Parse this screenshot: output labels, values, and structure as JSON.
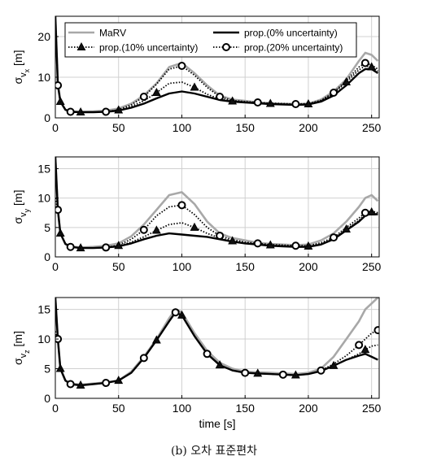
{
  "caption": "(b) 오차 표준편차",
  "colors": {
    "marv": "#a8a8a8",
    "prop": "#000000"
  },
  "chart_data": [
    {
      "type": "line",
      "ylabel_base": "σ",
      "ylabel_sub1": "v",
      "ylabel_sub2": "x",
      "ylabel_unit": " [m]",
      "xlabel": "",
      "xlim": [
        0,
        256
      ],
      "ylim": [
        0,
        25
      ],
      "xticks": [
        0,
        50,
        100,
        150,
        200,
        250
      ],
      "yticks": [
        0,
        10,
        20
      ],
      "grid": true,
      "legend": {
        "position": "top",
        "entries": [
          "MaRV",
          "prop.(0% uncertainty)",
          "prop.(10% uncertainty)",
          "prop.(20% uncertainty)"
        ]
      },
      "series": [
        {
          "name": "MaRV",
          "style": "gray",
          "x": [
            0,
            2,
            4,
            8,
            12,
            20,
            30,
            40,
            50,
            60,
            70,
            80,
            90,
            100,
            110,
            120,
            130,
            140,
            150,
            160,
            170,
            180,
            190,
            200,
            210,
            220,
            230,
            240,
            245,
            250,
            255
          ],
          "y": [
            25,
            9,
            4,
            2,
            1.6,
            1.5,
            1.6,
            1.8,
            2.3,
            3.5,
            5.5,
            8.5,
            12.5,
            13.5,
            11,
            8,
            5.5,
            4.5,
            4.2,
            3.8,
            3.6,
            3.5,
            3.4,
            3.5,
            4.5,
            6.5,
            9.5,
            14,
            16,
            15.5,
            14
          ]
        },
        {
          "name": "prop.(0% uncertainty)",
          "style": "solid",
          "x": [
            0,
            2,
            4,
            8,
            12,
            20,
            30,
            40,
            50,
            60,
            70,
            80,
            90,
            100,
            110,
            120,
            130,
            140,
            150,
            160,
            170,
            180,
            190,
            200,
            210,
            220,
            230,
            240,
            245,
            250,
            255
          ],
          "y": [
            25,
            8,
            4,
            2,
            1.5,
            1.4,
            1.4,
            1.5,
            1.8,
            2.5,
            3.5,
            4.8,
            6,
            6.5,
            6,
            5.2,
            4.4,
            4,
            3.8,
            3.6,
            3.4,
            3.3,
            3.2,
            3.3,
            4,
            5.5,
            8,
            11,
            12,
            12,
            11
          ]
        },
        {
          "name": "prop.(10% uncertainty)",
          "style": "dotted-triangle",
          "x": [
            0,
            2,
            4,
            8,
            12,
            20,
            30,
            40,
            50,
            60,
            70,
            80,
            90,
            100,
            110,
            120,
            130,
            140,
            150,
            160,
            170,
            180,
            190,
            200,
            210,
            220,
            230,
            240,
            245,
            250,
            255
          ],
          "y": [
            25,
            8,
            4,
            2,
            1.5,
            1.4,
            1.4,
            1.5,
            1.9,
            2.8,
            4.2,
            6.2,
            8.5,
            8.8,
            7.5,
            5.8,
            4.6,
            4.1,
            3.9,
            3.7,
            3.5,
            3.4,
            3.3,
            3.4,
            4.2,
            6,
            8.8,
            11.8,
            12.8,
            12.5,
            11.5
          ]
        },
        {
          "name": "prop.(20% uncertainty)",
          "style": "dotted-circle",
          "x": [
            0,
            2,
            4,
            8,
            12,
            20,
            30,
            40,
            50,
            60,
            70,
            80,
            90,
            100,
            110,
            120,
            130,
            140,
            150,
            160,
            170,
            180,
            190,
            200,
            210,
            220,
            230,
            240,
            245,
            250,
            255
          ],
          "y": [
            25,
            8,
            4,
            2,
            1.5,
            1.4,
            1.4,
            1.5,
            2,
            3.2,
            5.2,
            8.3,
            12,
            12.8,
            10.5,
            7.5,
            5.2,
            4.3,
            4,
            3.8,
            3.6,
            3.5,
            3.4,
            3.5,
            4.3,
            6.2,
            9.2,
            12.5,
            13.5,
            13,
            12
          ]
        }
      ]
    },
    {
      "type": "line",
      "ylabel_base": "σ",
      "ylabel_sub1": "v",
      "ylabel_sub2": "y",
      "ylabel_unit": " [m]",
      "xlabel": "",
      "xlim": [
        0,
        256
      ],
      "ylim": [
        0,
        17
      ],
      "xticks": [
        0,
        50,
        100,
        150,
        200,
        250
      ],
      "yticks": [
        0,
        5,
        10,
        15
      ],
      "grid": true,
      "series": [
        {
          "name": "MaRV",
          "style": "gray",
          "x": [
            0,
            2,
            4,
            8,
            12,
            20,
            30,
            40,
            50,
            60,
            70,
            80,
            90,
            100,
            110,
            120,
            130,
            140,
            150,
            160,
            170,
            180,
            190,
            200,
            210,
            220,
            230,
            240,
            245,
            250,
            255
          ],
          "y": [
            17,
            8,
            4,
            2.2,
            1.8,
            1.6,
            1.7,
            1.9,
            2.3,
            3.5,
            5.5,
            8,
            10.5,
            11,
            9,
            6,
            4,
            3.2,
            2.8,
            2.4,
            2.2,
            2.1,
            2,
            2.1,
            2.8,
            4,
            6,
            8.5,
            10,
            10.5,
            9.5
          ]
        },
        {
          "name": "prop.(0% uncertainty)",
          "style": "solid",
          "x": [
            0,
            2,
            4,
            8,
            12,
            20,
            30,
            40,
            50,
            60,
            70,
            80,
            90,
            100,
            110,
            120,
            130,
            140,
            150,
            160,
            170,
            180,
            190,
            200,
            210,
            220,
            230,
            240,
            245,
            250,
            255
          ],
          "y": [
            17,
            8,
            4,
            2.2,
            1.7,
            1.5,
            1.5,
            1.6,
            1.8,
            2.3,
            3,
            3.6,
            4,
            3.8,
            3.6,
            3.4,
            3,
            2.6,
            2.3,
            2.1,
            1.9,
            1.8,
            1.7,
            1.7,
            2.1,
            3,
            4.5,
            6,
            7,
            7.4,
            7.2
          ]
        },
        {
          "name": "prop.(10% uncertainty)",
          "style": "dotted-triangle",
          "x": [
            0,
            2,
            4,
            8,
            12,
            20,
            30,
            40,
            50,
            60,
            70,
            80,
            90,
            100,
            110,
            120,
            130,
            140,
            150,
            160,
            170,
            180,
            190,
            200,
            210,
            220,
            230,
            240,
            245,
            250,
            255
          ],
          "y": [
            17,
            8,
            4,
            2.2,
            1.7,
            1.5,
            1.5,
            1.6,
            1.9,
            2.5,
            3.4,
            4.5,
            5.5,
            5.8,
            5,
            4,
            3.2,
            2.7,
            2.4,
            2.2,
            2,
            1.9,
            1.8,
            1.8,
            2.2,
            3.1,
            4.7,
            6.2,
            7.2,
            7.6,
            7.3
          ]
        },
        {
          "name": "prop.(20% uncertainty)",
          "style": "dotted-circle",
          "x": [
            0,
            2,
            4,
            8,
            12,
            20,
            30,
            40,
            50,
            60,
            70,
            80,
            90,
            100,
            110,
            120,
            130,
            140,
            150,
            160,
            170,
            180,
            190,
            200,
            210,
            220,
            230,
            240,
            245,
            250,
            255
          ],
          "y": [
            10,
            8,
            4,
            2.2,
            1.7,
            1.5,
            1.5,
            1.6,
            2,
            3,
            4.6,
            7,
            8.5,
            8.8,
            7.2,
            5,
            3.6,
            2.9,
            2.5,
            2.3,
            2.1,
            2,
            1.9,
            1.9,
            2.4,
            3.3,
            5,
            6.6,
            7.5,
            7.8,
            7.5
          ]
        }
      ]
    },
    {
      "type": "line",
      "ylabel_base": "σ",
      "ylabel_sub1": "v",
      "ylabel_sub2": "z",
      "ylabel_unit": " [m]",
      "xlabel": "time [s]",
      "xlim": [
        0,
        256
      ],
      "ylim": [
        0,
        17
      ],
      "xticks": [
        0,
        50,
        100,
        150,
        200,
        250
      ],
      "yticks": [
        0,
        5,
        10,
        15
      ],
      "grid": true,
      "series": [
        {
          "name": "MaRV",
          "style": "gray",
          "x": [
            0,
            2,
            4,
            8,
            12,
            20,
            30,
            40,
            50,
            60,
            70,
            80,
            90,
            95,
            100,
            110,
            120,
            130,
            140,
            150,
            160,
            170,
            180,
            190,
            200,
            210,
            220,
            230,
            240,
            245,
            250,
            255
          ],
          "y": [
            17,
            10,
            5,
            3,
            2.5,
            2.3,
            2.5,
            2.7,
            3,
            4.5,
            7,
            10,
            13.5,
            15,
            14.5,
            11,
            8,
            6,
            5,
            4.5,
            4.4,
            4.3,
            4.2,
            4.1,
            4.3,
            5,
            7,
            10,
            13,
            15,
            16,
            17
          ]
        },
        {
          "name": "prop.(0% uncertainty)",
          "style": "solid",
          "x": [
            0,
            2,
            4,
            8,
            12,
            20,
            30,
            40,
            50,
            60,
            70,
            80,
            90,
            95,
            100,
            110,
            120,
            130,
            140,
            150,
            160,
            170,
            180,
            190,
            200,
            210,
            220,
            230,
            240,
            245,
            250,
            255
          ],
          "y": [
            17,
            10,
            5,
            3,
            2.4,
            2.2,
            2.4,
            2.6,
            3,
            4.3,
            6.8,
            9.8,
            13,
            14.5,
            14,
            10.5,
            7.5,
            5.6,
            4.7,
            4.3,
            4.2,
            4.1,
            4,
            3.9,
            4.1,
            4.6,
            5.5,
            6.5,
            7.2,
            7.5,
            7,
            6.5
          ]
        },
        {
          "name": "prop.(10% uncertainty)",
          "style": "dotted-triangle",
          "x": [
            0,
            2,
            4,
            8,
            12,
            20,
            30,
            40,
            50,
            60,
            70,
            80,
            90,
            95,
            100,
            110,
            120,
            130,
            140,
            150,
            160,
            170,
            180,
            190,
            200,
            210,
            220,
            230,
            240,
            245,
            250,
            255
          ],
          "y": [
            17,
            10,
            5,
            3,
            2.4,
            2.2,
            2.4,
            2.6,
            3,
            4.3,
            6.8,
            9.8,
            13,
            14.5,
            14,
            10.5,
            7.5,
            5.6,
            4.7,
            4.3,
            4.2,
            4.1,
            4,
            3.9,
            4.1,
            4.6,
            5.5,
            6.5,
            7.5,
            8.2,
            8.8,
            9
          ]
        },
        {
          "name": "prop.(20% uncertainty)",
          "style": "dotted-circle",
          "x": [
            0,
            2,
            4,
            8,
            12,
            20,
            30,
            40,
            50,
            60,
            70,
            80,
            90,
            95,
            100,
            110,
            120,
            130,
            140,
            150,
            160,
            170,
            180,
            190,
            200,
            210,
            220,
            230,
            240,
            245,
            250,
            255
          ],
          "y": [
            11.3,
            10,
            5,
            3,
            2.4,
            2.2,
            2.4,
            2.6,
            3,
            4.3,
            6.8,
            9.8,
            13,
            14.5,
            14,
            10.5,
            7.5,
            5.6,
            4.7,
            4.3,
            4.2,
            4.1,
            4,
            3.9,
            4.1,
            4.7,
            5.8,
            7.2,
            9,
            10,
            11,
            11.5
          ]
        }
      ]
    }
  ]
}
